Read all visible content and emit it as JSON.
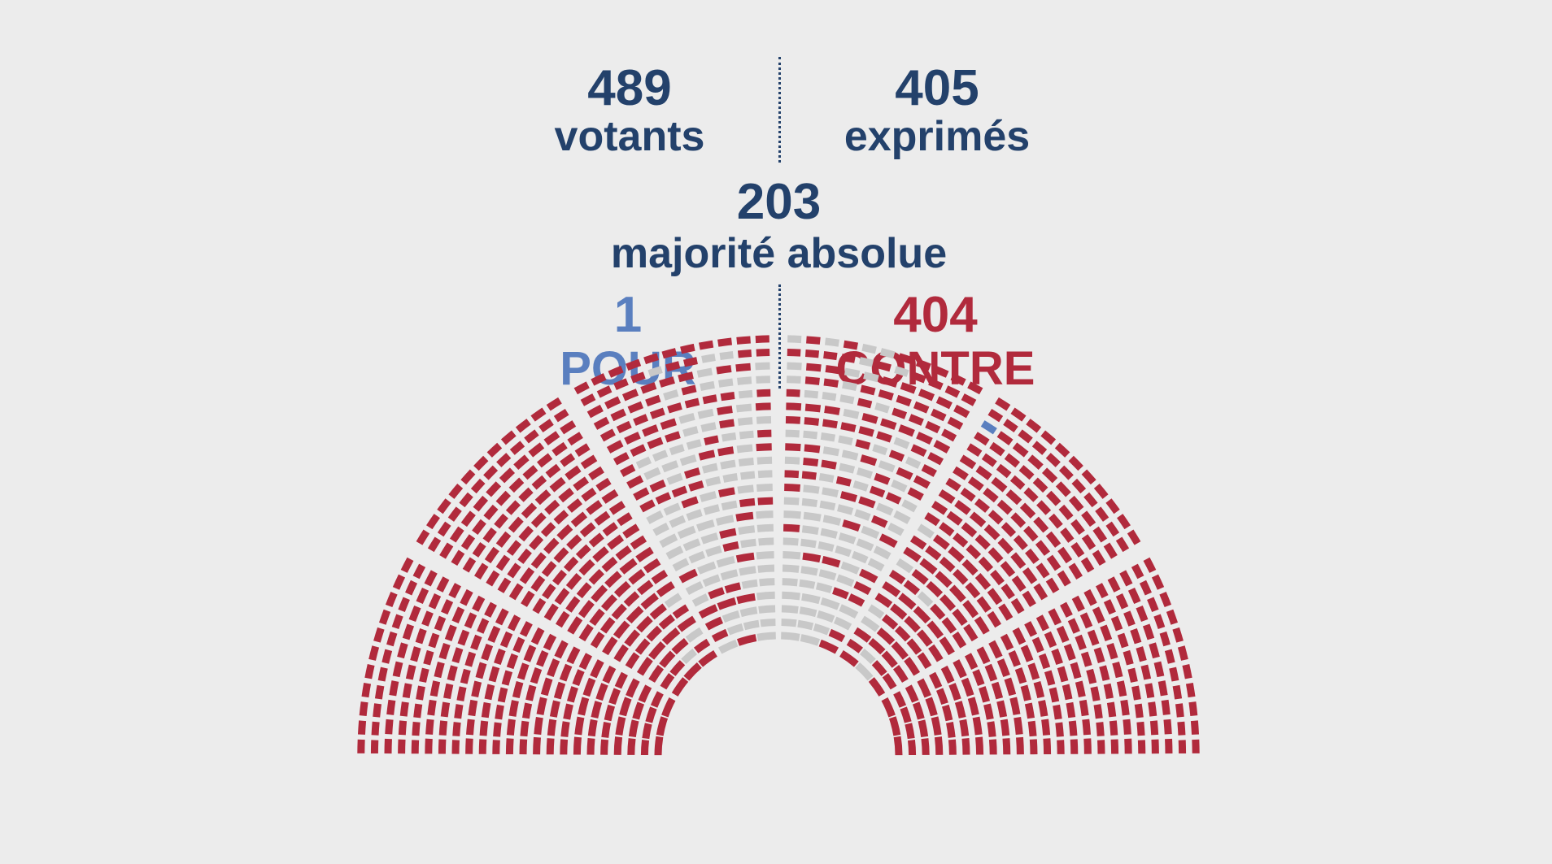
{
  "votants": {
    "value": "489",
    "label": "votants"
  },
  "exprimes": {
    "value": "405",
    "label": "exprimés"
  },
  "majorite": {
    "value": "203",
    "label": "majorité absolue"
  },
  "pour": {
    "value": "1",
    "label": "POUR"
  },
  "contre": {
    "value": "404",
    "label": "CONTRE"
  },
  "colors": {
    "dark_blue": "#23416b",
    "pour": "#5a7fbf",
    "contre": "#b12a3c",
    "empty_seat": "#c8c8c8",
    "background": "#ececec"
  },
  "chart_data": {
    "type": "hemicycle",
    "counts": {
      "pour": 1,
      "contre": 404,
      "not_voting": 84
    }
  }
}
